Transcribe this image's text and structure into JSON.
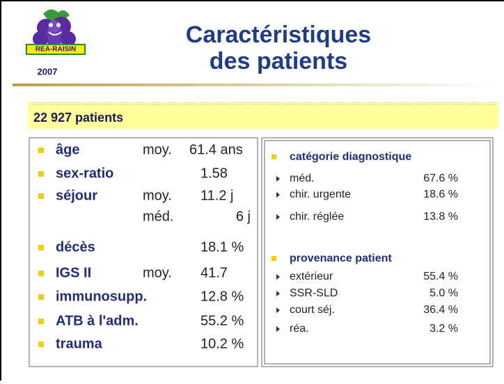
{
  "header": {
    "logo_text": "REA-RAISIN",
    "year": "2007",
    "title": [
      "Caractéristiques",
      "des patients"
    ]
  },
  "banner": "22 927 patients",
  "left": [
    {
      "label": "âge",
      "stat": "moy.",
      "value": "61.4 ans"
    },
    {
      "label": "sex-ratio",
      "value": "1.58"
    },
    {
      "label": "séjour",
      "stat": "moy.",
      "value": "11.2 j"
    },
    {
      "stat": "méd.",
      "value": "6 j"
    },
    {
      "label": "décès",
      "value": "18.1 %"
    },
    {
      "label": "IGS II",
      "stat": "moy.",
      "value": "41.7"
    },
    {
      "label": "immunosupp.",
      "value": "12.8 %"
    },
    {
      "label": "ATB à l'adm.",
      "value": "55.2 %"
    },
    {
      "label": "trauma",
      "value": "10.2 %"
    }
  ],
  "right": [
    {
      "heading": "catégorie diagnostique",
      "items": [
        {
          "label": "méd.",
          "value": "67.6 %"
        },
        {
          "label": "chir. urgente",
          "value": "18.6 %"
        },
        {
          "label": "chir. réglée",
          "value": "13.8 %"
        }
      ]
    },
    {
      "heading": "provenance patient",
      "items": [
        {
          "label": "extérieur",
          "value": "55.4 %"
        },
        {
          "label": "SSR-SLD",
          "value": "5.0 %"
        },
        {
          "label": "court séj.",
          "value": "36.4 %"
        },
        {
          "label": "réa.",
          "value": "3.2 %"
        }
      ]
    }
  ]
}
